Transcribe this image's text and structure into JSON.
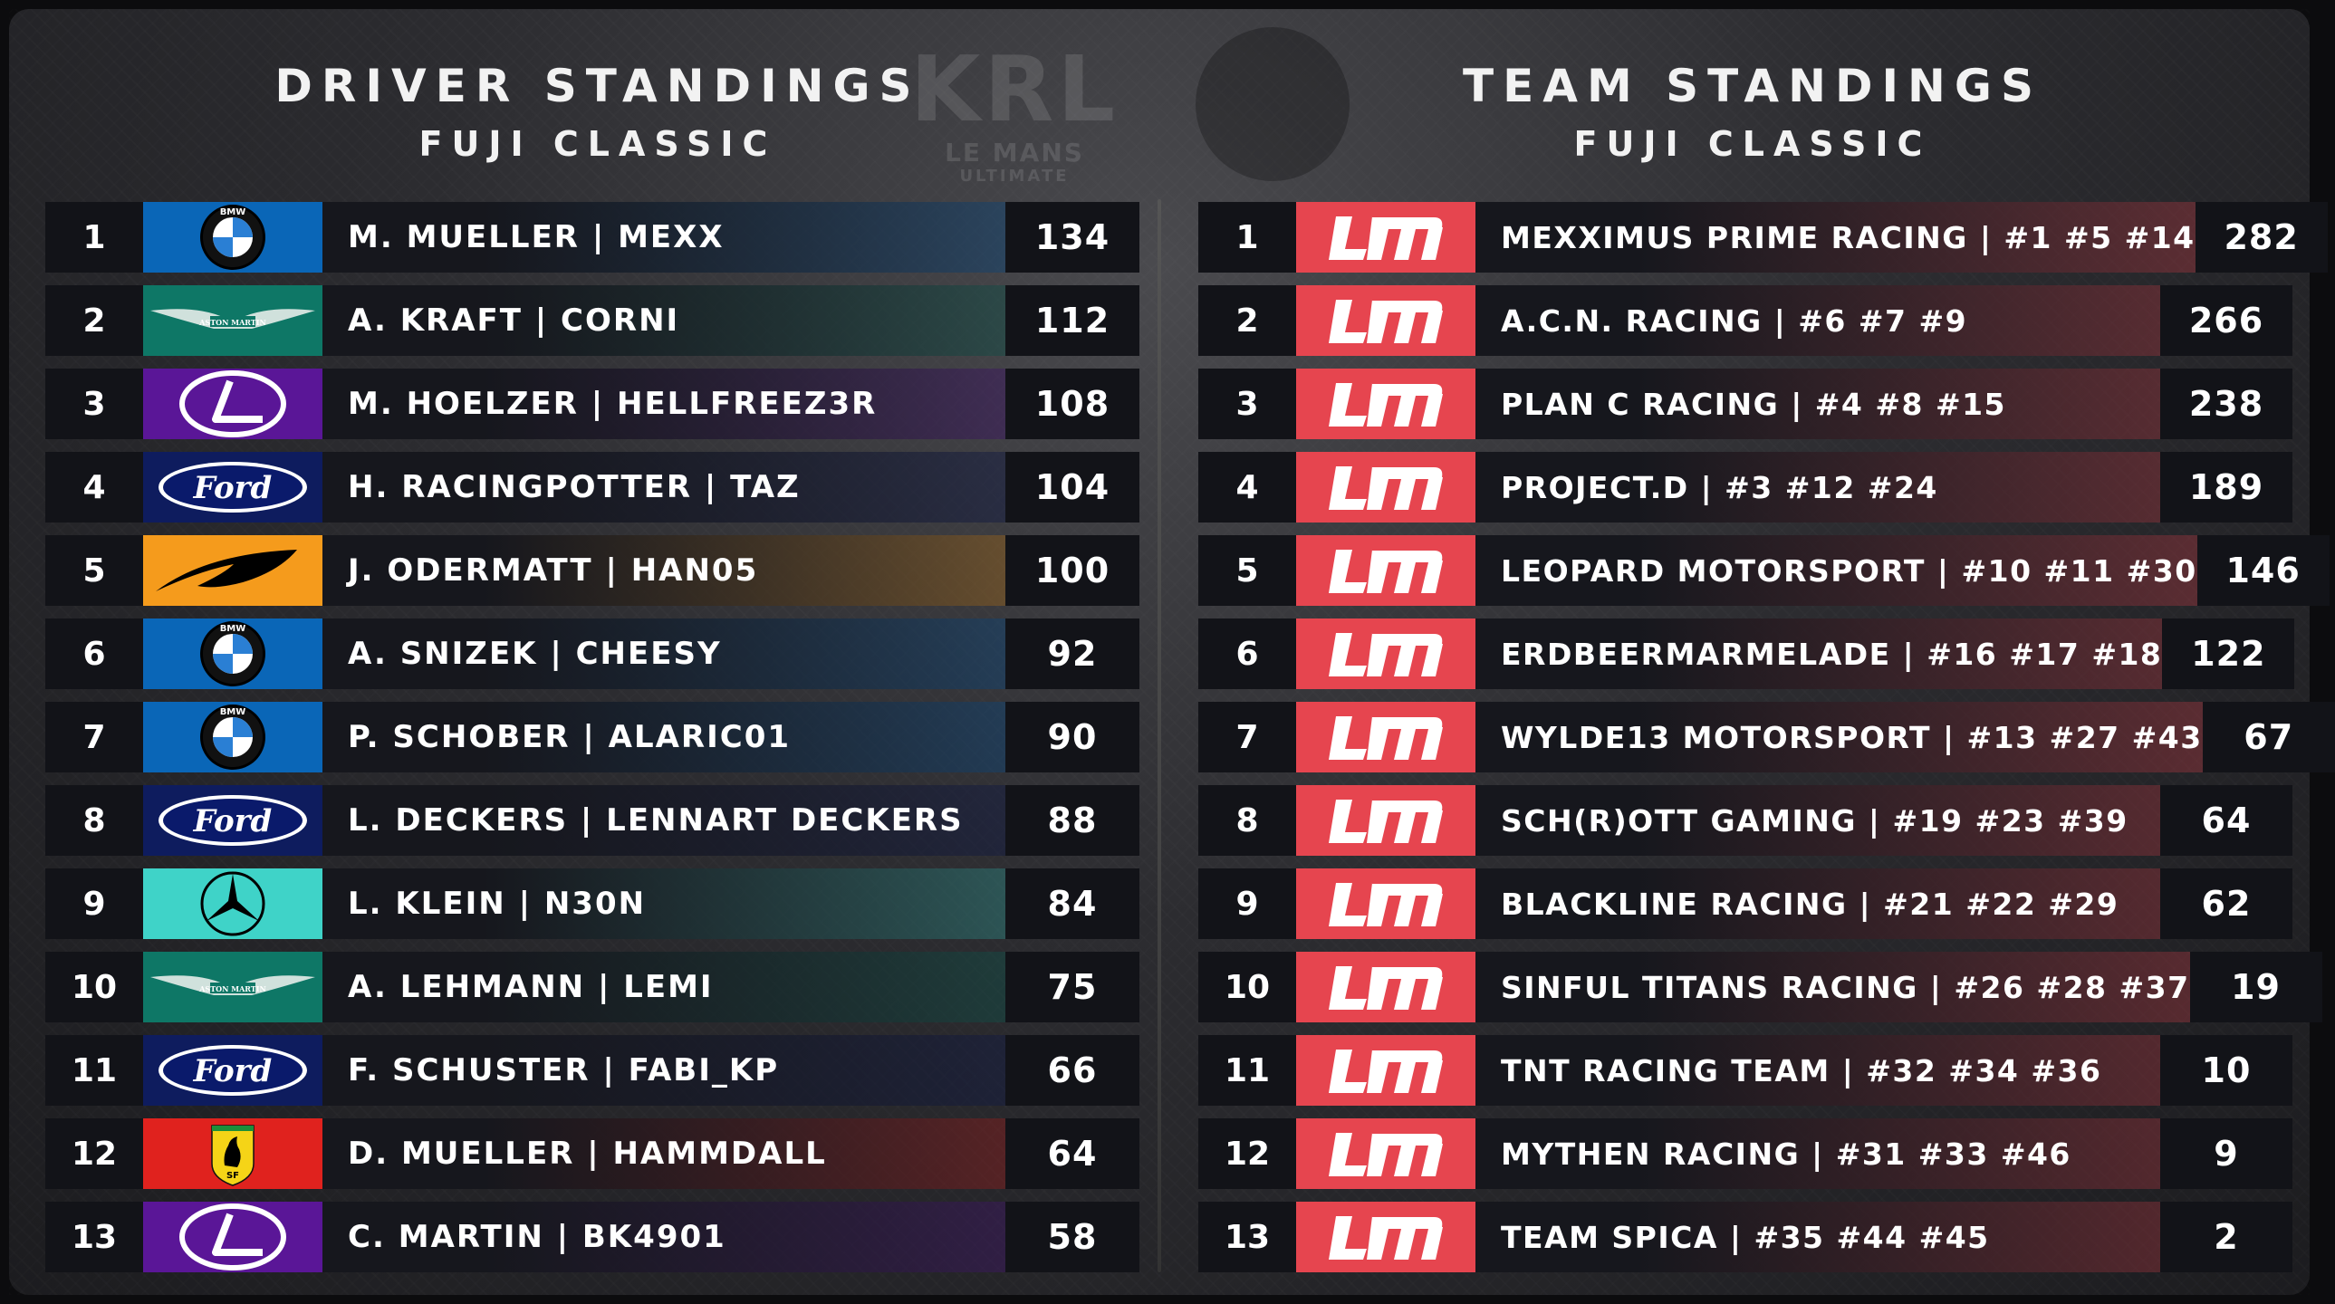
{
  "watermark": {
    "main": "KRL",
    "sub": "LE MANS",
    "sub2": "ULTIMATE"
  },
  "driver_standings": {
    "title": "DRIVER STANDINGS",
    "subtitle": "FUJI CLASSIC",
    "rows": [
      {
        "pos": "1",
        "brand": "bmw",
        "name": "M. MUELLER | MEXX",
        "points": "134"
      },
      {
        "pos": "2",
        "brand": "aston-martin",
        "name": "A. KRAFT | CORNI",
        "points": "112"
      },
      {
        "pos": "3",
        "brand": "lexus",
        "name": "M. HOELZER | HELLFREEZ3R",
        "points": "108"
      },
      {
        "pos": "4",
        "brand": "ford",
        "name": "H. RACINGPOTTER | TAZ",
        "points": "104"
      },
      {
        "pos": "5",
        "brand": "mclaren",
        "name": "J. ODERMATT | HAN05",
        "points": "100"
      },
      {
        "pos": "6",
        "brand": "bmw",
        "name": "A. SNIZEK | CHEESY",
        "points": "92"
      },
      {
        "pos": "7",
        "brand": "bmw",
        "name": "P. SCHOBER | ALARIC01",
        "points": "90"
      },
      {
        "pos": "8",
        "brand": "ford",
        "name": "L. DECKERS | LENNART DECKERS",
        "points": "88"
      },
      {
        "pos": "9",
        "brand": "mercedes",
        "name": "L. KLEIN | N30N",
        "points": "84"
      },
      {
        "pos": "10",
        "brand": "aston-martin",
        "name": "A. LEHMANN | LEMI",
        "points": "75"
      },
      {
        "pos": "11",
        "brand": "ford",
        "name": "F. SCHUSTER | FABI_KP",
        "points": "66"
      },
      {
        "pos": "12",
        "brand": "ferrari",
        "name": "D. MUELLER | HAMMDALL",
        "points": "64"
      },
      {
        "pos": "13",
        "brand": "lexus",
        "name": "C. MARTIN | BK4901",
        "points": "58"
      }
    ]
  },
  "team_standings": {
    "title": "TEAM STANDINGS",
    "subtitle": "FUJI CLASSIC",
    "rows": [
      {
        "pos": "1",
        "brand": "lm",
        "name": "MEXXIMUS PRIME RACING | #1 #5 #14",
        "points": "282"
      },
      {
        "pos": "2",
        "brand": "lm",
        "name": "A.C.N. RACING | #6 #7 #9",
        "points": "266"
      },
      {
        "pos": "3",
        "brand": "lm",
        "name": "PLAN C RACING | #4 #8 #15",
        "points": "238"
      },
      {
        "pos": "4",
        "brand": "lm",
        "name": "PROJECT.D | #3 #12 #24",
        "points": "189"
      },
      {
        "pos": "5",
        "brand": "lm",
        "name": "LEOPARD MOTORSPORT | #10 #11 #30",
        "points": "146"
      },
      {
        "pos": "6",
        "brand": "lm",
        "name": "ERDBEERMARMELADE | #16 #17 #18",
        "points": "122"
      },
      {
        "pos": "7",
        "brand": "lm",
        "name": "WYLDE13 MOTORSPORT | #13 #27 #43",
        "points": "67"
      },
      {
        "pos": "8",
        "brand": "lm",
        "name": "SCH(R)OTT GAMING | #19 #23 #39",
        "points": "64"
      },
      {
        "pos": "9",
        "brand": "lm",
        "name": "BLACKLINE RACING | #21 #22 #29",
        "points": "62"
      },
      {
        "pos": "10",
        "brand": "lm",
        "name": "SINFUL TITANS RACING | #26 #28 #37",
        "points": "19"
      },
      {
        "pos": "11",
        "brand": "lm",
        "name": "TNT RACING TEAM | #32 #34 #36",
        "points": "10"
      },
      {
        "pos": "12",
        "brand": "lm",
        "name": "MYTHEN RACING | #31 #33 #46",
        "points": "9"
      },
      {
        "pos": "13",
        "brand": "lm",
        "name": "TEAM SPICA | #35 #44 #45",
        "points": "2"
      }
    ]
  },
  "brand_colors": {
    "bmw": "#0a66b7",
    "aston-martin": "#0e7766",
    "lexus": "#5a1697",
    "ford": "#0e1c5e",
    "mclaren": "#f59b1c",
    "mercedes": "#3fd3c8",
    "ferrari": "#e0221e",
    "lm": "#e6454f"
  },
  "brand_labels": {
    "aston-martin": "ASTON MARTIN",
    "ford": "Ford",
    "bmw": "BMW",
    "lm": "LM",
    "ferrari": "SF"
  }
}
